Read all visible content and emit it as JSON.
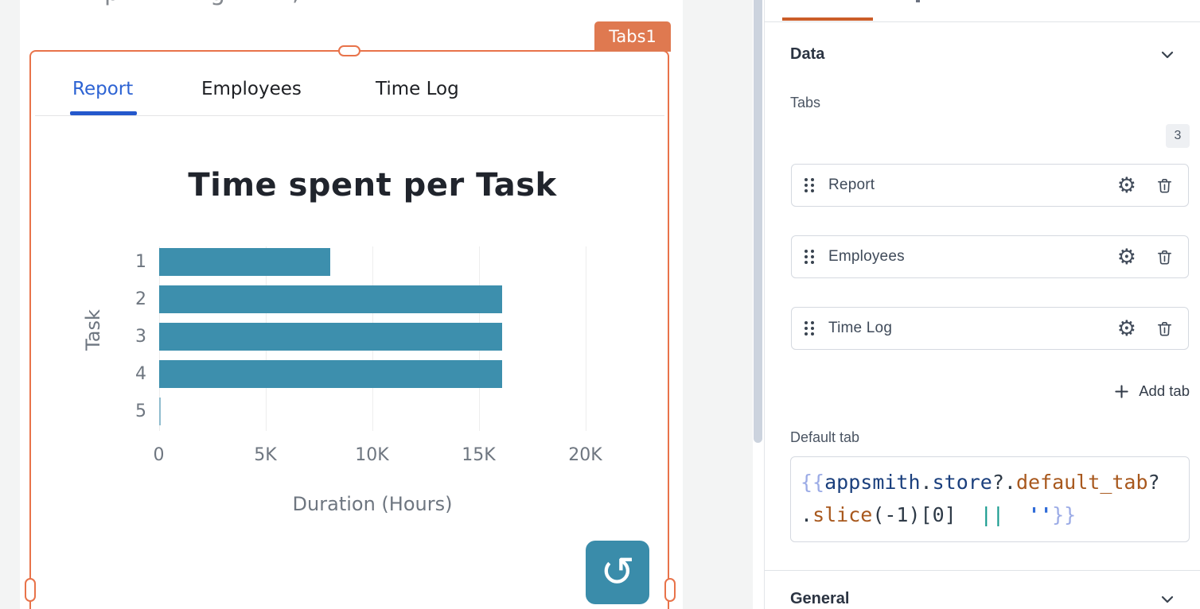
{
  "canvas": {
    "widget_tag": "Tabs1",
    "tabs": [
      {
        "label": "Report",
        "active": true
      },
      {
        "label": "Employees",
        "active": false
      },
      {
        "label": "Time Log",
        "active": false
      }
    ],
    "clipped_fragments": [
      "p",
      "g",
      ","
    ],
    "refresh_glyph": "↺"
  },
  "chart_data": {
    "type": "bar",
    "orientation": "horizontal",
    "title": "Time spent per Task",
    "xlabel": "Duration (Hours)",
    "ylabel": "Task",
    "categories": [
      "1",
      "2",
      "3",
      "4",
      "5"
    ],
    "values": [
      8050,
      16100,
      16100,
      16100,
      100
    ],
    "x_ticks": [
      "0",
      "5K",
      "10K",
      "15K",
      "20K"
    ],
    "x_tick_values": [
      0,
      5000,
      10000,
      15000,
      20000
    ],
    "xlim": [
      0,
      20000
    ],
    "grid": true,
    "legend": false
  },
  "panel": {
    "data_section_title": "Data",
    "tabs_label": "Tabs",
    "tabs_count": "3",
    "tabs_list": [
      "Report",
      "Employees",
      "Time Log"
    ],
    "add_tab_label": "Add tab",
    "default_tab_label": "Default tab",
    "default_tab_code": "{{appsmith.store?.default_tab?.slice(-1)[0] || ''}}",
    "code_lines": [
      [
        {
          "t": "{{",
          "c": "brace"
        },
        {
          "t": "appsmith",
          "c": "obj"
        },
        {
          "t": ".",
          "c": "punct"
        },
        {
          "t": "store",
          "c": "obj"
        },
        {
          "t": "?.",
          "c": "punct"
        },
        {
          "t": "default_tab",
          "c": "prop"
        },
        {
          "t": "?",
          "c": "punct"
        }
      ],
      [
        {
          "t": ".",
          "c": "punct"
        },
        {
          "t": "slice",
          "c": "prop"
        },
        {
          "t": "(-1)[0]",
          "c": "punct"
        },
        {
          "t": "  ",
          "c": "punct"
        },
        {
          "t": "||",
          "c": "op"
        },
        {
          "t": "  ",
          "c": "punct"
        },
        {
          "t": "''",
          "c": "str"
        },
        {
          "t": "}}",
          "c": "brace"
        }
      ]
    ],
    "general_section_title": "General",
    "icons": {
      "settings": "gear",
      "delete": "trash",
      "reorder": "six-dot-drag-handle",
      "collapse": "chevron-down",
      "add": "plus",
      "refresh": "circular-arrow-ccw"
    }
  },
  "colors": {
    "selection_orange": "#e8734a",
    "tag_orange": "#df7950",
    "panel_tab_underline": "#cb5d28",
    "bar_teal": "#3d8fad",
    "bar_thin_teal": "#8fbcce",
    "active_tab_blue": "#2d63d3",
    "refresh_button_teal": "#3a8caa"
  }
}
